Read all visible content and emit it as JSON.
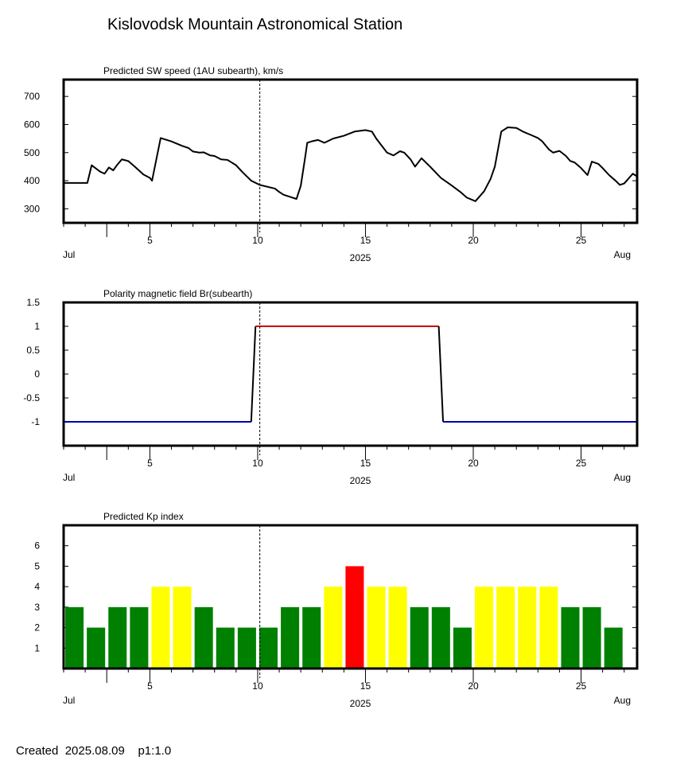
{
  "station_title": "Kislovodsk Mountain Astronomical Station",
  "footer": {
    "created_label": "Created",
    "created_date": "2025.08.09",
    "page": "p1:1.0"
  },
  "time_axis": {
    "start_day": 1,
    "end_day": 27.6,
    "major_ticks": [
      5,
      10,
      15,
      20,
      25
    ],
    "month_start": "Jul",
    "month_end": "Aug",
    "year": "2025",
    "current_day": 10.1
  },
  "chart_data": [
    {
      "type": "line",
      "title": "Predicted SW speed (1AU subearth), km/s",
      "ylabel": "km/s",
      "ylim": [
        250,
        760
      ],
      "yticks": [
        300,
        400,
        500,
        600,
        700
      ],
      "color": "#000000",
      "x": [
        1.0,
        2.1,
        2.3,
        2.7,
        2.9,
        3.1,
        3.3,
        3.5,
        3.7,
        4.0,
        4.3,
        4.7,
        5.0,
        5.1,
        5.5,
        6.0,
        6.5,
        6.8,
        7.0,
        7.3,
        7.5,
        7.8,
        8.0,
        8.3,
        8.6,
        9.0,
        9.3,
        9.7,
        10.1,
        10.8,
        11.0,
        11.2,
        11.6,
        11.8,
        12.0,
        12.2,
        12.3,
        12.5,
        12.8,
        13.1,
        13.5,
        14.0,
        14.5,
        15.0,
        15.3,
        15.5,
        15.8,
        16.0,
        16.3,
        16.6,
        16.8,
        17.1,
        17.3,
        17.6,
        18.0,
        18.5,
        19.0,
        19.4,
        19.7,
        20.1,
        20.5,
        20.8,
        21.0,
        21.3,
        21.6,
        22.0,
        22.3,
        22.7,
        23.0,
        23.2,
        23.5,
        23.7,
        24.0,
        24.3,
        24.5,
        24.7,
        25.0,
        25.3,
        25.5,
        25.8,
        26.0,
        26.3,
        26.6,
        26.8,
        27.0,
        27.4,
        27.6
      ],
      "y": [
        392,
        392,
        455,
        432,
        425,
        447,
        437,
        458,
        476,
        470,
        450,
        422,
        410,
        400,
        552,
        540,
        524,
        516,
        504,
        500,
        501,
        490,
        488,
        476,
        474,
        455,
        430,
        400,
        385,
        372,
        360,
        350,
        340,
        335,
        382,
        482,
        535,
        540,
        545,
        535,
        550,
        560,
        575,
        580,
        575,
        550,
        520,
        500,
        490,
        505,
        500,
        475,
        450,
        480,
        450,
        410,
        383,
        360,
        340,
        327,
        362,
        406,
        450,
        575,
        590,
        588,
        575,
        562,
        552,
        540,
        512,
        500,
        506,
        488,
        470,
        465,
        445,
        420,
        468,
        460,
        445,
        420,
        400,
        385,
        390,
        425,
        415
      ]
    },
    {
      "type": "line",
      "title": "Polarity magnetic field  Br(subearth)",
      "ylim": [
        -1.5,
        1.5
      ],
      "yticks": [
        -1,
        -0.5,
        0,
        0.5,
        1,
        1.5
      ],
      "ytick_labels": [
        "-1",
        "-0.5",
        "0",
        "0.5",
        "1",
        "1.5"
      ],
      "series": [
        {
          "color": "#0000AA",
          "x": [
            1.0,
            9.7
          ],
          "y": [
            -1,
            -1
          ]
        },
        {
          "color": "#000000",
          "x": [
            9.7,
            9.9
          ],
          "y": [
            -1,
            1
          ]
        },
        {
          "color": "#CC0000",
          "x": [
            9.9,
            18.4
          ],
          "y": [
            1,
            1
          ]
        },
        {
          "color": "#000000",
          "x": [
            18.4,
            18.6
          ],
          "y": [
            1,
            -1
          ]
        },
        {
          "color": "#0000AA",
          "x": [
            18.6,
            27.6
          ],
          "y": [
            -1,
            -1
          ]
        }
      ]
    },
    {
      "type": "bar",
      "title": "Predicted Kp index",
      "ylim": [
        0,
        7
      ],
      "yticks": [
        1,
        2,
        3,
        4,
        5,
        6
      ],
      "bar_width_days": 0.85,
      "colors": {
        "green": "#008000",
        "yellow": "#FFFF00",
        "red": "#FF0000"
      },
      "x": [
        1.5,
        2.5,
        3.5,
        4.5,
        5.5,
        6.5,
        7.5,
        8.5,
        9.5,
        10.5,
        11.5,
        12.5,
        13.5,
        14.5,
        15.5,
        16.5,
        17.5,
        18.5,
        19.5,
        20.5,
        21.5,
        22.5,
        23.5,
        24.5,
        25.5,
        26.5
      ],
      "values": [
        3,
        2,
        3,
        3,
        4,
        4,
        3,
        2,
        2,
        2,
        3,
        3,
        4,
        5,
        4,
        4,
        3,
        3,
        2,
        4,
        4,
        4,
        4,
        3,
        3,
        2
      ],
      "bar_colors": [
        "green",
        "green",
        "green",
        "green",
        "yellow",
        "yellow",
        "green",
        "green",
        "green",
        "green",
        "green",
        "green",
        "yellow",
        "red",
        "yellow",
        "yellow",
        "green",
        "green",
        "green",
        "yellow",
        "yellow",
        "yellow",
        "yellow",
        "green",
        "green",
        "green"
      ]
    }
  ]
}
